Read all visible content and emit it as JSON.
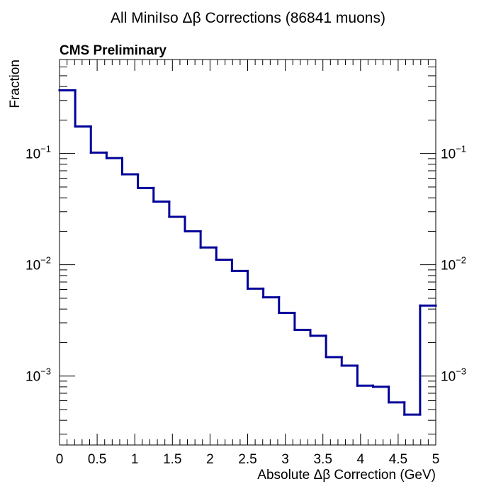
{
  "chart_data": {
    "type": "line",
    "style": "step-histogram",
    "title": "All MiniIso Δβ Corrections (86841 muons)",
    "annotation": "CMS Preliminary",
    "xlabel": "Absolute Δβ Correction (GeV)",
    "ylabel": "Fraction",
    "xlim": [
      0,
      5
    ],
    "ylim": [
      0.00024,
      0.7
    ],
    "y_scale": "log",
    "grid": false,
    "legend": "none",
    "line_color": "#000099",
    "x_ticks": [
      0,
      0.5,
      1,
      1.5,
      2,
      2.5,
      3,
      3.5,
      4,
      4.5,
      5
    ],
    "x_tick_labels": [
      "0",
      "0.5",
      "1",
      "1.5",
      "2",
      "2.5",
      "3",
      "3.5",
      "4",
      "4.5",
      "5"
    ],
    "y_ticks": [
      0.001,
      0.01,
      0.1
    ],
    "y_tick_labels": [
      {
        "base": "10",
        "exp": "−3"
      },
      {
        "base": "10",
        "exp": "−2"
      },
      {
        "base": "10",
        "exp": "−1"
      }
    ],
    "bin_edges": [
      0,
      0.2083,
      0.4167,
      0.625,
      0.8333,
      1.0417,
      1.25,
      1.4583,
      1.6667,
      1.875,
      2.0833,
      2.2917,
      2.5,
      2.7083,
      2.9167,
      3.125,
      3.3333,
      3.5417,
      3.75,
      3.9583,
      4.1667,
      4.375,
      4.5833,
      4.7917,
      5
    ],
    "values": [
      0.37,
      0.175,
      0.102,
      0.091,
      0.065,
      0.049,
      0.037,
      0.027,
      0.02,
      0.0143,
      0.0111,
      0.0088,
      0.0061,
      0.0051,
      0.0037,
      0.0026,
      0.0023,
      0.00148,
      0.00124,
      0.00082,
      0.0008,
      0.00058,
      0.00045,
      0.0043
    ]
  }
}
